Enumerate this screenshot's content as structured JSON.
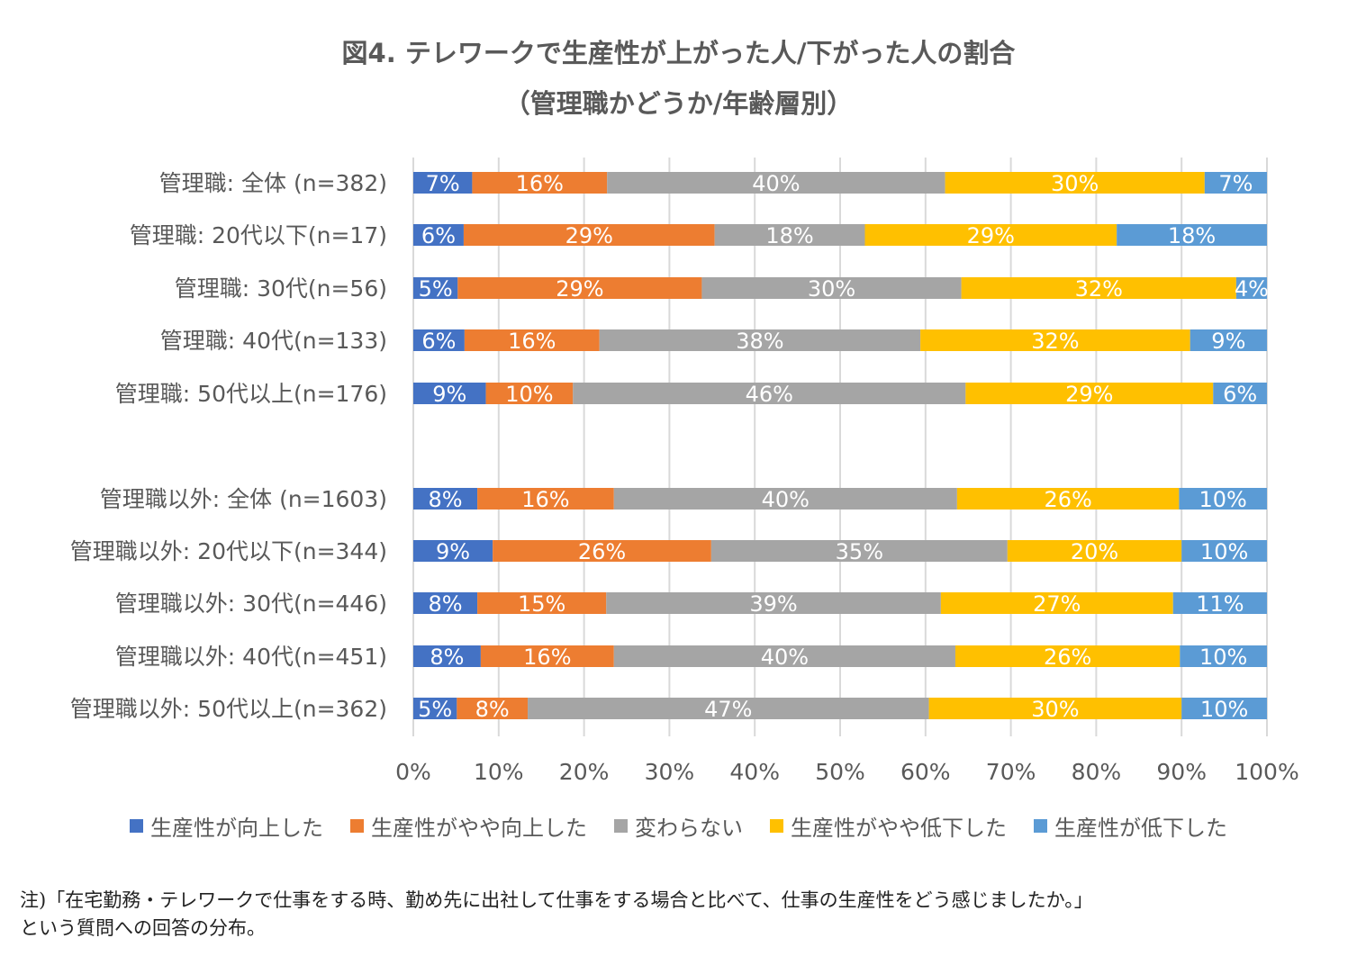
{
  "title": "図4. テレワークで生産性が上がった人/下がった人の割合",
  "subtitle": "（管理職かどうか/年齢層別）",
  "note_line1": "注)「在宅勤務・テレワークで仕事をする時、勤め先に出社して仕事をする場合と比べて、仕事の生産性をどう感じましたか。」",
  "note_line2": "という質問への回答の分布。",
  "chart_data": {
    "type": "bar",
    "orientation": "horizontal",
    "stacked": "100%",
    "xlim": [
      0,
      100
    ],
    "x_ticks": [
      "0%",
      "10%",
      "20%",
      "30%",
      "40%",
      "50%",
      "60%",
      "70%",
      "80%",
      "90%",
      "100%"
    ],
    "grid": "vertical",
    "legend_position": "bottom",
    "categories": [
      "管理職: 全体 (n=382)",
      "管理職: 20代以下(n=17)",
      "管理職: 30代(n=56)",
      "管理職: 40代(n=133)",
      "管理職: 50代以上(n=176)",
      "",
      "管理職以外: 全体 (n=1603)",
      "管理職以外: 20代以下(n=344)",
      "管理職以外: 30代(n=446)",
      "管理職以外: 40代(n=451)",
      "管理職以外: 50代以上(n=362)"
    ],
    "series": [
      {
        "name": "生産性が向上した",
        "color": "#4472C4",
        "values": [
          7,
          6,
          5,
          6,
          9,
          null,
          8,
          9,
          8,
          8,
          5
        ],
        "widths": [
          6.9,
          5.9,
          5.2,
          6.0,
          8.5,
          null,
          7.5,
          9.3,
          7.5,
          7.9,
          5.1
        ]
      },
      {
        "name": "生産性がやや向上した",
        "color": "#ED7D31",
        "values": [
          16,
          29,
          29,
          16,
          10,
          null,
          16,
          26,
          15,
          16,
          8
        ],
        "widths": [
          15.8,
          29.4,
          28.6,
          15.8,
          10.2,
          null,
          16.0,
          25.6,
          15.1,
          15.6,
          8.3
        ]
      },
      {
        "name": "変わらない",
        "color": "#A5A5A5",
        "values": [
          40,
          18,
          30,
          38,
          46,
          null,
          40,
          35,
          39,
          40,
          47
        ],
        "widths": [
          39.6,
          17.6,
          30.4,
          37.6,
          46.0,
          null,
          40.2,
          34.7,
          39.2,
          40.0,
          47.0
        ]
      },
      {
        "name": "生産性がやや低下した",
        "color": "#FFC000",
        "values": [
          30,
          29,
          32,
          32,
          29,
          null,
          26,
          20,
          27,
          26,
          30
        ],
        "widths": [
          30.4,
          29.5,
          32.2,
          31.6,
          29.0,
          null,
          26.0,
          20.4,
          27.2,
          26.3,
          29.6
        ]
      },
      {
        "name": "生産性が低下した",
        "color": "#5B9BD5",
        "values": [
          7,
          18,
          4,
          9,
          6,
          null,
          10,
          10,
          11,
          10,
          10
        ],
        "widths": [
          7.3,
          17.6,
          3.6,
          9.0,
          6.3,
          null,
          10.3,
          10.0,
          11.0,
          10.2,
          10.0
        ]
      }
    ]
  }
}
